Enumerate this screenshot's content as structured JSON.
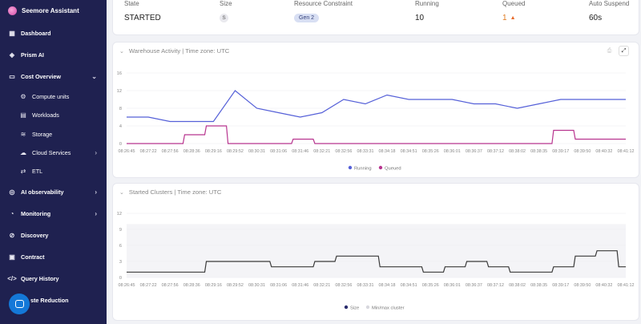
{
  "sidebar": {
    "brand": "Seemore Assistant",
    "items": [
      {
        "label": "Dashboard",
        "icon": "dashboard-icon"
      },
      {
        "label": "Prism AI",
        "icon": "prism-icon"
      },
      {
        "label": "Cost Overview",
        "icon": "wallet-icon"
      },
      {
        "label": "Compute units",
        "icon": "compute-icon"
      },
      {
        "label": "Workloads",
        "icon": "workloads-icon"
      },
      {
        "label": "Storage",
        "icon": "storage-icon"
      },
      {
        "label": "Cloud Services",
        "icon": "cloud-icon"
      },
      {
        "label": "ETL",
        "icon": "etl-icon"
      },
      {
        "label": "AI observability",
        "icon": "ai-icon"
      },
      {
        "label": "Monitoring",
        "icon": "monitoring-icon"
      },
      {
        "label": "Discovery",
        "icon": "discovery-icon"
      },
      {
        "label": "Contract",
        "icon": "contract-icon"
      },
      {
        "label": "Query History",
        "icon": "code-icon"
      },
      {
        "label": "ste Reduction",
        "icon": "reduction-icon"
      }
    ]
  },
  "warehouse": {
    "state_label": "State",
    "state_value": "STARTED",
    "size_label": "Size",
    "size_value": "S",
    "constraint_label": "Resource Constraint",
    "constraint_value": "Gen 2",
    "running_label": "Running",
    "running_value": "10",
    "queued_label": "Queued",
    "queued_value": "1",
    "suspend_label": "Auto Suspend",
    "suspend_value": "60s"
  },
  "activity": {
    "title": "Warehouse Activity | Time zone: UTC",
    "legend_running": "Running",
    "legend_queued": "Queued"
  },
  "clusters": {
    "title": "Started Clusters | Time zone: UTC",
    "legend_size": "Size",
    "legend_minmax": "Min/max cluster"
  },
  "colors": {
    "running": "#5560d8",
    "queued": "#b8358f",
    "size": "#3a3a3a",
    "band": "#f4f4f7"
  },
  "chart_data": [
    {
      "type": "line",
      "title": "Warehouse Activity | Time zone: UTC",
      "ylim": [
        0,
        16
      ],
      "yticks": [
        0,
        4,
        8,
        12,
        16
      ],
      "x": [
        "08:26:45",
        "08:27:22",
        "08:27:56",
        "08:28:36",
        "08:29:16",
        "08:29:52",
        "08:30:31",
        "08:31:06",
        "08:31:46",
        "08:32:21",
        "08:32:56",
        "08:33:31",
        "08:34:18",
        "08:34:51",
        "08:35:26",
        "08:36:01",
        "08:36:37",
        "08:37:12",
        "08:38:02",
        "08:38:35",
        "08:39:17",
        "08:39:50",
        "08:40:32",
        "08:41:12"
      ],
      "series": [
        {
          "name": "Running",
          "values": [
            6,
            6,
            5,
            5,
            5,
            12,
            8,
            7,
            6,
            7,
            10,
            9,
            11,
            10,
            10,
            10,
            9,
            9,
            8,
            9,
            10,
            10,
            10,
            10
          ]
        },
        {
          "name": "Queued",
          "values": [
            0,
            0,
            0,
            2,
            4,
            0,
            0,
            0,
            1,
            0,
            0,
            0,
            0,
            0,
            0,
            0,
            0,
            0,
            0,
            0,
            3,
            1,
            1,
            1
          ]
        }
      ]
    },
    {
      "type": "line",
      "title": "Started Clusters | Time zone: UTC",
      "ylim": [
        0,
        12
      ],
      "yticks": [
        0,
        3,
        6,
        9,
        12
      ],
      "x": [
        "08:26:45",
        "08:27:22",
        "08:27:56",
        "08:28:36",
        "08:29:16",
        "08:29:52",
        "08:30:31",
        "08:31:06",
        "08:31:46",
        "08:32:21",
        "08:32:56",
        "08:33:31",
        "08:34:18",
        "08:34:51",
        "08:35:26",
        "08:36:01",
        "08:36:37",
        "08:37:12",
        "08:38:02",
        "08:38:35",
        "08:39:17",
        "08:39:50",
        "08:40:32",
        "08:41:12"
      ],
      "series": [
        {
          "name": "Size",
          "values": [
            1,
            1,
            1,
            1,
            3,
            3,
            3,
            2,
            2,
            3,
            4,
            4,
            2,
            2,
            1,
            2,
            3,
            2,
            1,
            1,
            2,
            4,
            5,
            2
          ]
        },
        {
          "name": "Min/max cluster",
          "values": [
            10,
            10,
            10,
            10,
            10,
            10,
            10,
            10,
            10,
            10,
            10,
            10,
            10,
            10,
            10,
            10,
            10,
            10,
            10,
            10,
            10,
            10,
            10,
            10
          ]
        }
      ]
    }
  ]
}
